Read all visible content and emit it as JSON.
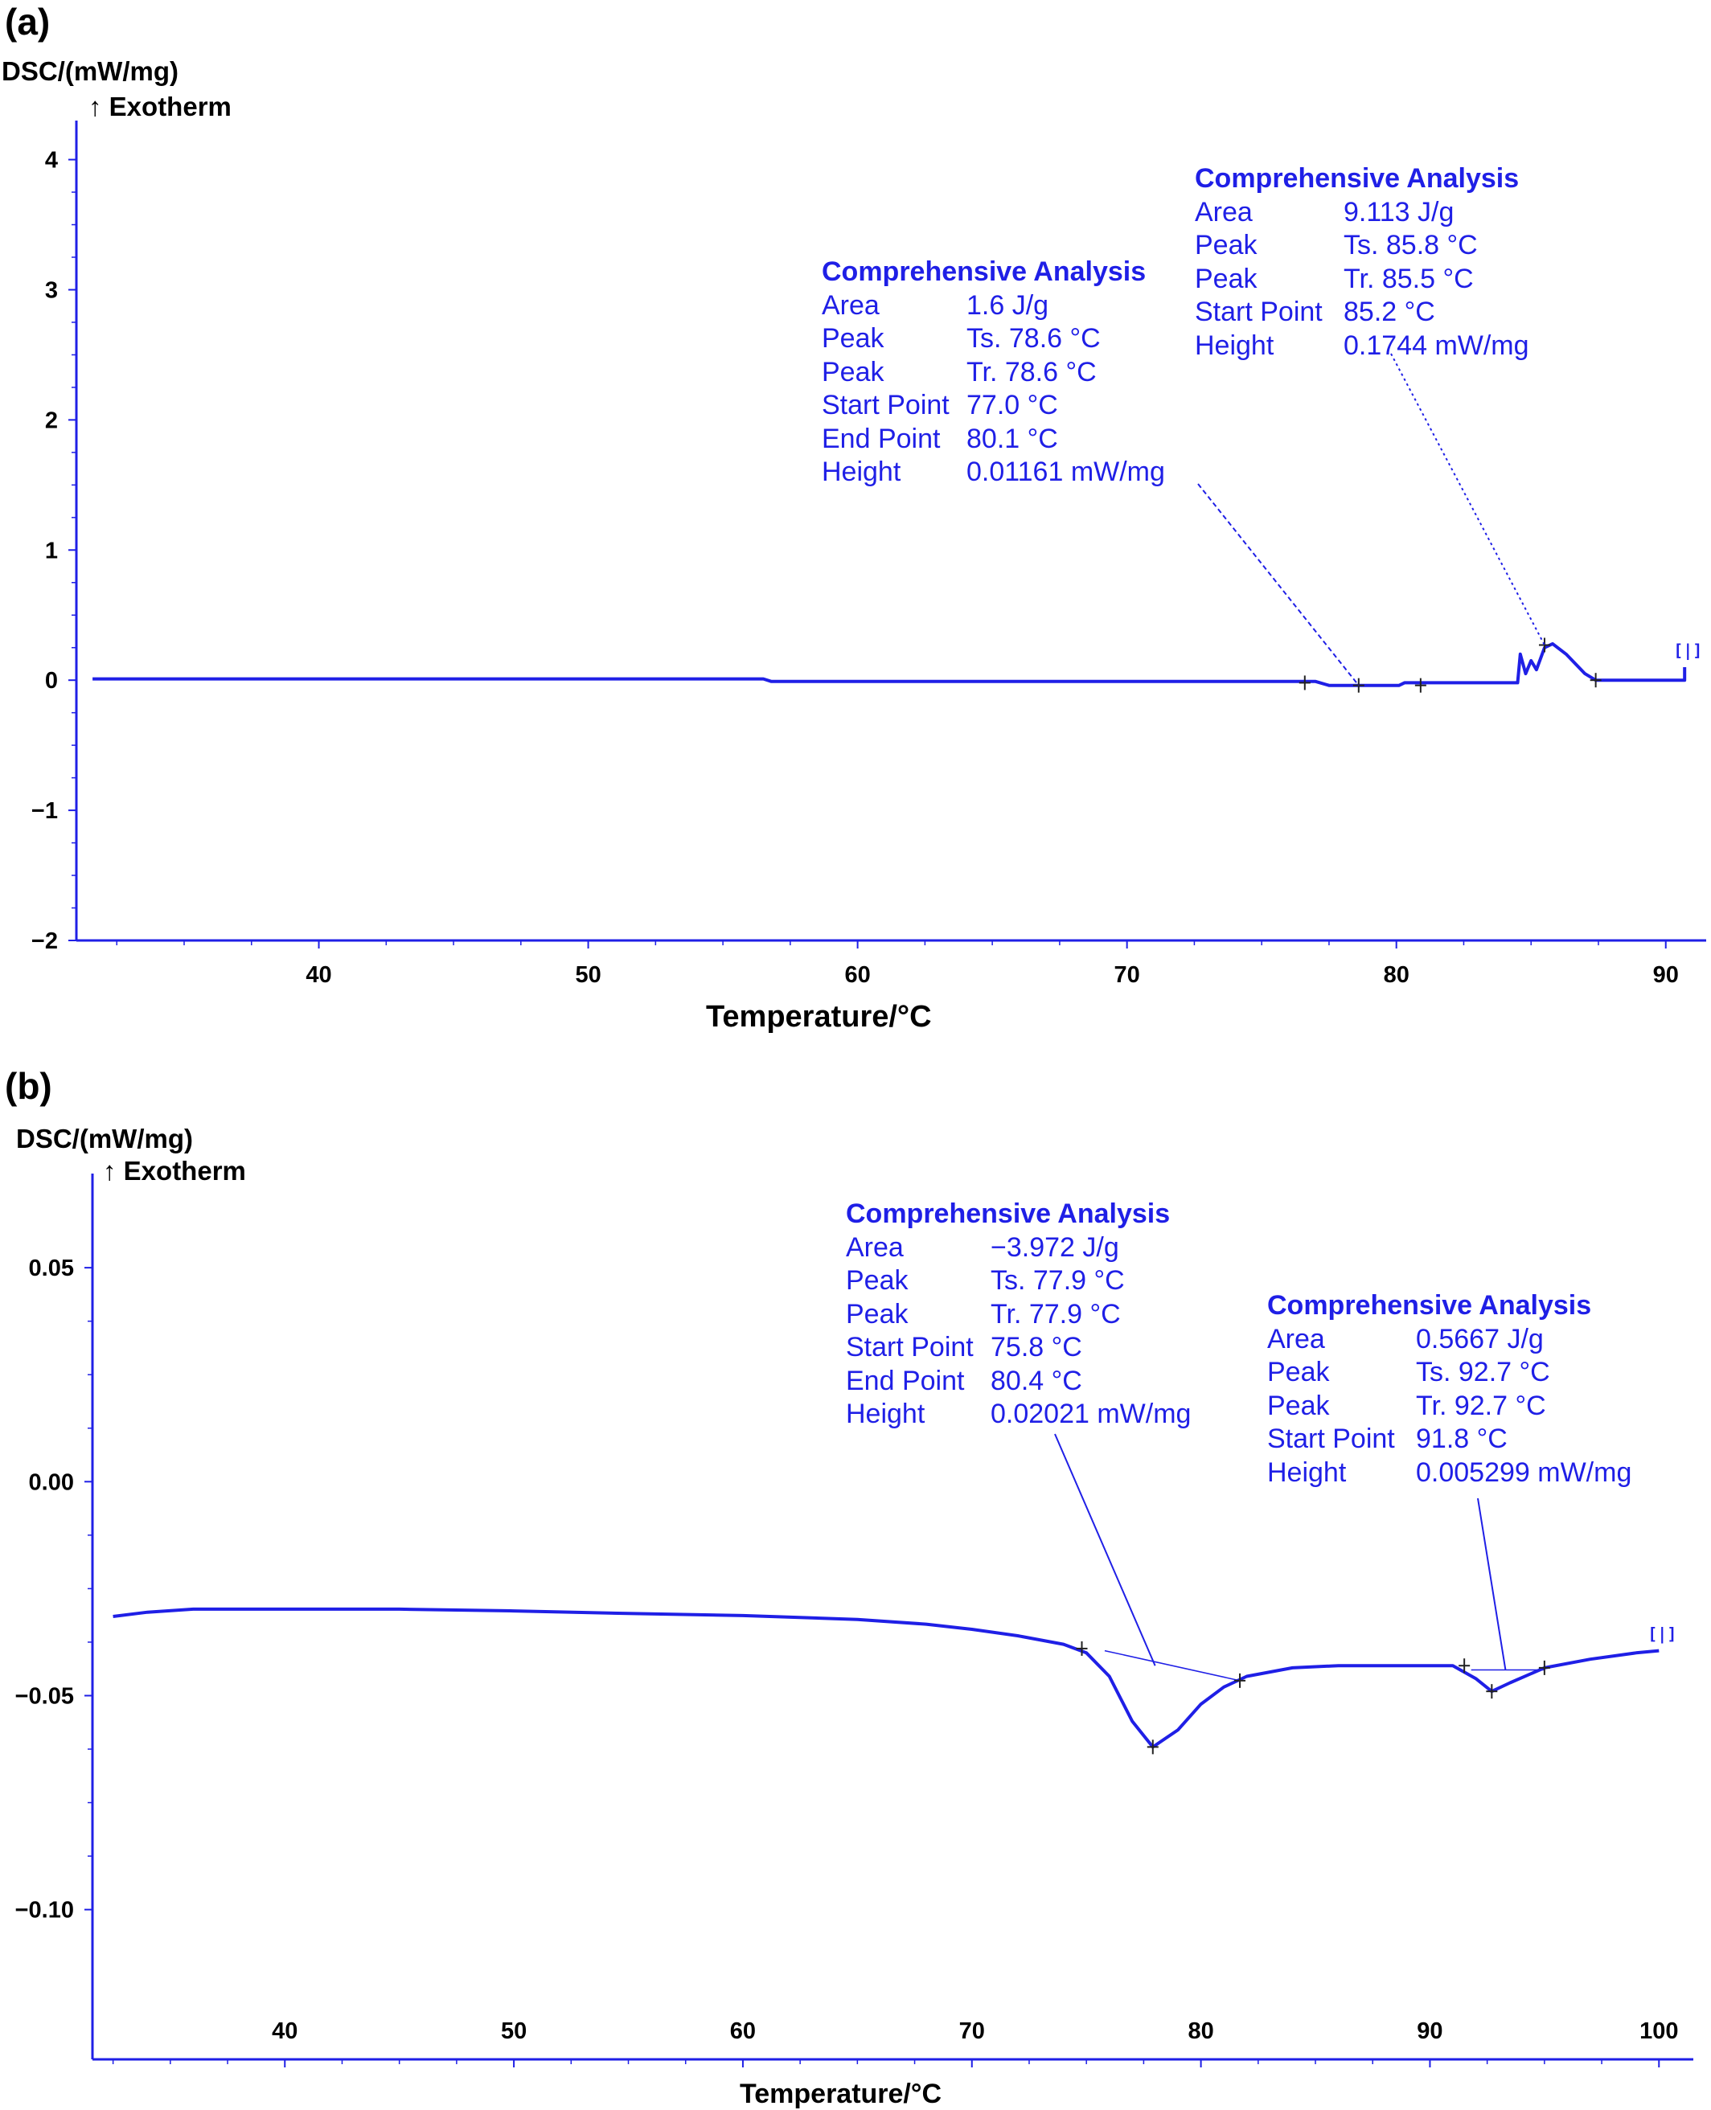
{
  "colors": {
    "curve": "#1f1fe6",
    "axis": "#1f1fe6",
    "text": "#000000",
    "annotation": "#1f1fe6"
  },
  "chart_data": [
    {
      "panel": "(a)",
      "type": "line",
      "ylabel": "DSC/(mW/mg)",
      "direction": "↑ Exotherm",
      "xlabel": "Temperature/°C",
      "xlim": [
        31,
        91.5
      ],
      "ylim": [
        -2,
        4.3
      ],
      "xticks": [
        40,
        50,
        60,
        70,
        80,
        90
      ],
      "yticks": [
        4,
        3,
        2,
        1,
        0,
        -1,
        -2
      ],
      "ytick_labels": [
        "4",
        "3",
        "2",
        "1",
        "0",
        "−1",
        "−2"
      ],
      "series": [
        {
          "points": [
            [
              31.6,
              0.01
            ],
            [
              56.5,
              0.01
            ],
            [
              56.8,
              -0.01
            ],
            [
              77.0,
              -0.01
            ],
            [
              77.5,
              -0.04
            ],
            [
              80.1,
              -0.04
            ],
            [
              80.3,
              -0.02
            ],
            [
              84.5,
              -0.02
            ],
            [
              84.6,
              0.2
            ],
            [
              84.8,
              0.05
            ],
            [
              85.0,
              0.15
            ],
            [
              85.2,
              0.08
            ],
            [
              85.5,
              0.25
            ],
            [
              85.8,
              0.28
            ],
            [
              86.3,
              0.2
            ],
            [
              87.0,
              0.05
            ],
            [
              87.4,
              0.0
            ],
            [
              90.7,
              0.0
            ],
            [
              90.7,
              0.1
            ]
          ]
        }
      ],
      "markers": [
        [
          76.6,
          -0.02
        ],
        [
          78.6,
          -0.04
        ],
        [
          80.9,
          -0.04
        ],
        [
          85.5,
          0.27
        ],
        [
          87.4,
          0.0
        ]
      ],
      "annotations": [
        {
          "title": "Comprehensive Analysis",
          "rows": [
            [
              "Area",
              "1.6 J/g"
            ],
            [
              "Peak",
              "Ts. 78.6 °C"
            ],
            [
              "Peak",
              "Tr. 78.6 °C"
            ],
            [
              "Start Point",
              "77.0 °C"
            ],
            [
              "End Point",
              "80.1 °C"
            ],
            [
              "Height",
              "0.01161 mW/mg"
            ]
          ],
          "pointer_to": [
            78.6,
            -0.04
          ]
        },
        {
          "title": "Comprehensive Analysis",
          "rows": [
            [
              "Area",
              "9.113 J/g"
            ],
            [
              "Peak",
              "Ts. 85.8 °C"
            ],
            [
              "Peak",
              "Tr. 85.5 °C"
            ],
            [
              "Start Point",
              "85.2 °C"
            ],
            [
              "Height",
              "0.1744 mW/mg"
            ]
          ],
          "pointer_to": [
            85.5,
            0.27
          ]
        }
      ]
    },
    {
      "panel": "(b)",
      "type": "line",
      "ylabel": "DSC/(mW/mg)",
      "direction": "↑ Exotherm",
      "xlabel": "Temperature/°C",
      "xlim": [
        31.6,
        101.5
      ],
      "ylim": [
        -0.135,
        0.072
      ],
      "xticks": [
        40,
        50,
        60,
        70,
        80,
        90,
        100
      ],
      "yticks": [
        0.05,
        0.0,
        -0.05,
        -0.1
      ],
      "ytick_labels": [
        "0.05",
        "0.00",
        "−0.05",
        "−0.10"
      ],
      "series": [
        {
          "points": [
            [
              32.5,
              -0.0315
            ],
            [
              34,
              -0.0305
            ],
            [
              36,
              -0.0298
            ],
            [
              40,
              -0.0298
            ],
            [
              45,
              -0.0298
            ],
            [
              50,
              -0.0302
            ],
            [
              55,
              -0.0308
            ],
            [
              60,
              -0.0313
            ],
            [
              65,
              -0.0322
            ],
            [
              68,
              -0.0333
            ],
            [
              70,
              -0.0345
            ],
            [
              72,
              -0.036
            ],
            [
              74,
              -0.038
            ],
            [
              75,
              -0.04
            ],
            [
              76,
              -0.0455
            ],
            [
              77,
              -0.056
            ],
            [
              77.9,
              -0.062
            ],
            [
              79,
              -0.058
            ],
            [
              80,
              -0.052
            ],
            [
              81,
              -0.048
            ],
            [
              82,
              -0.0455
            ],
            [
              84,
              -0.0435
            ],
            [
              86,
              -0.043
            ],
            [
              88,
              -0.043
            ],
            [
              91,
              -0.043
            ],
            [
              92,
              -0.046
            ],
            [
              92.7,
              -0.049
            ],
            [
              93.5,
              -0.047
            ],
            [
              95,
              -0.0435
            ],
            [
              97,
              -0.0415
            ],
            [
              99,
              -0.04
            ],
            [
              100,
              -0.0395
            ]
          ]
        }
      ],
      "baselines": [
        [
          [
            75.8,
            -0.0395
          ],
          [
            81.7,
            -0.0465
          ]
        ],
        [
          [
            91.8,
            -0.044
          ],
          [
            95.0,
            -0.044
          ]
        ]
      ],
      "markers": [
        [
          74.8,
          -0.039
        ],
        [
          77.9,
          -0.062
        ],
        [
          81.7,
          -0.0465
        ],
        [
          91.5,
          -0.043
        ],
        [
          92.7,
          -0.049
        ],
        [
          95.0,
          -0.0435
        ]
      ],
      "annotations": [
        {
          "title": "Comprehensive Analysis",
          "rows": [
            [
              "Area",
              "−3.972 J/g"
            ],
            [
              "Peak",
              "Ts. 77.9 °C"
            ],
            [
              "Peak",
              "Tr. 77.9 °C"
            ],
            [
              "Start Point",
              "75.8 °C"
            ],
            [
              "End Point",
              "80.4 °C"
            ],
            [
              "Height",
              "0.02021 mW/mg"
            ]
          ],
          "pointer_to": [
            78.0,
            -0.043
          ]
        },
        {
          "title": "Comprehensive Analysis",
          "rows": [
            [
              "Area",
              "0.5667 J/g"
            ],
            [
              "Peak",
              "Ts. 92.7 °C"
            ],
            [
              "Peak",
              "Tr. 92.7 °C"
            ],
            [
              "Start Point",
              "91.8 °C"
            ],
            [
              "Height",
              "0.005299 mW/mg"
            ]
          ],
          "pointer_to": [
            93.3,
            -0.044
          ]
        }
      ]
    }
  ]
}
